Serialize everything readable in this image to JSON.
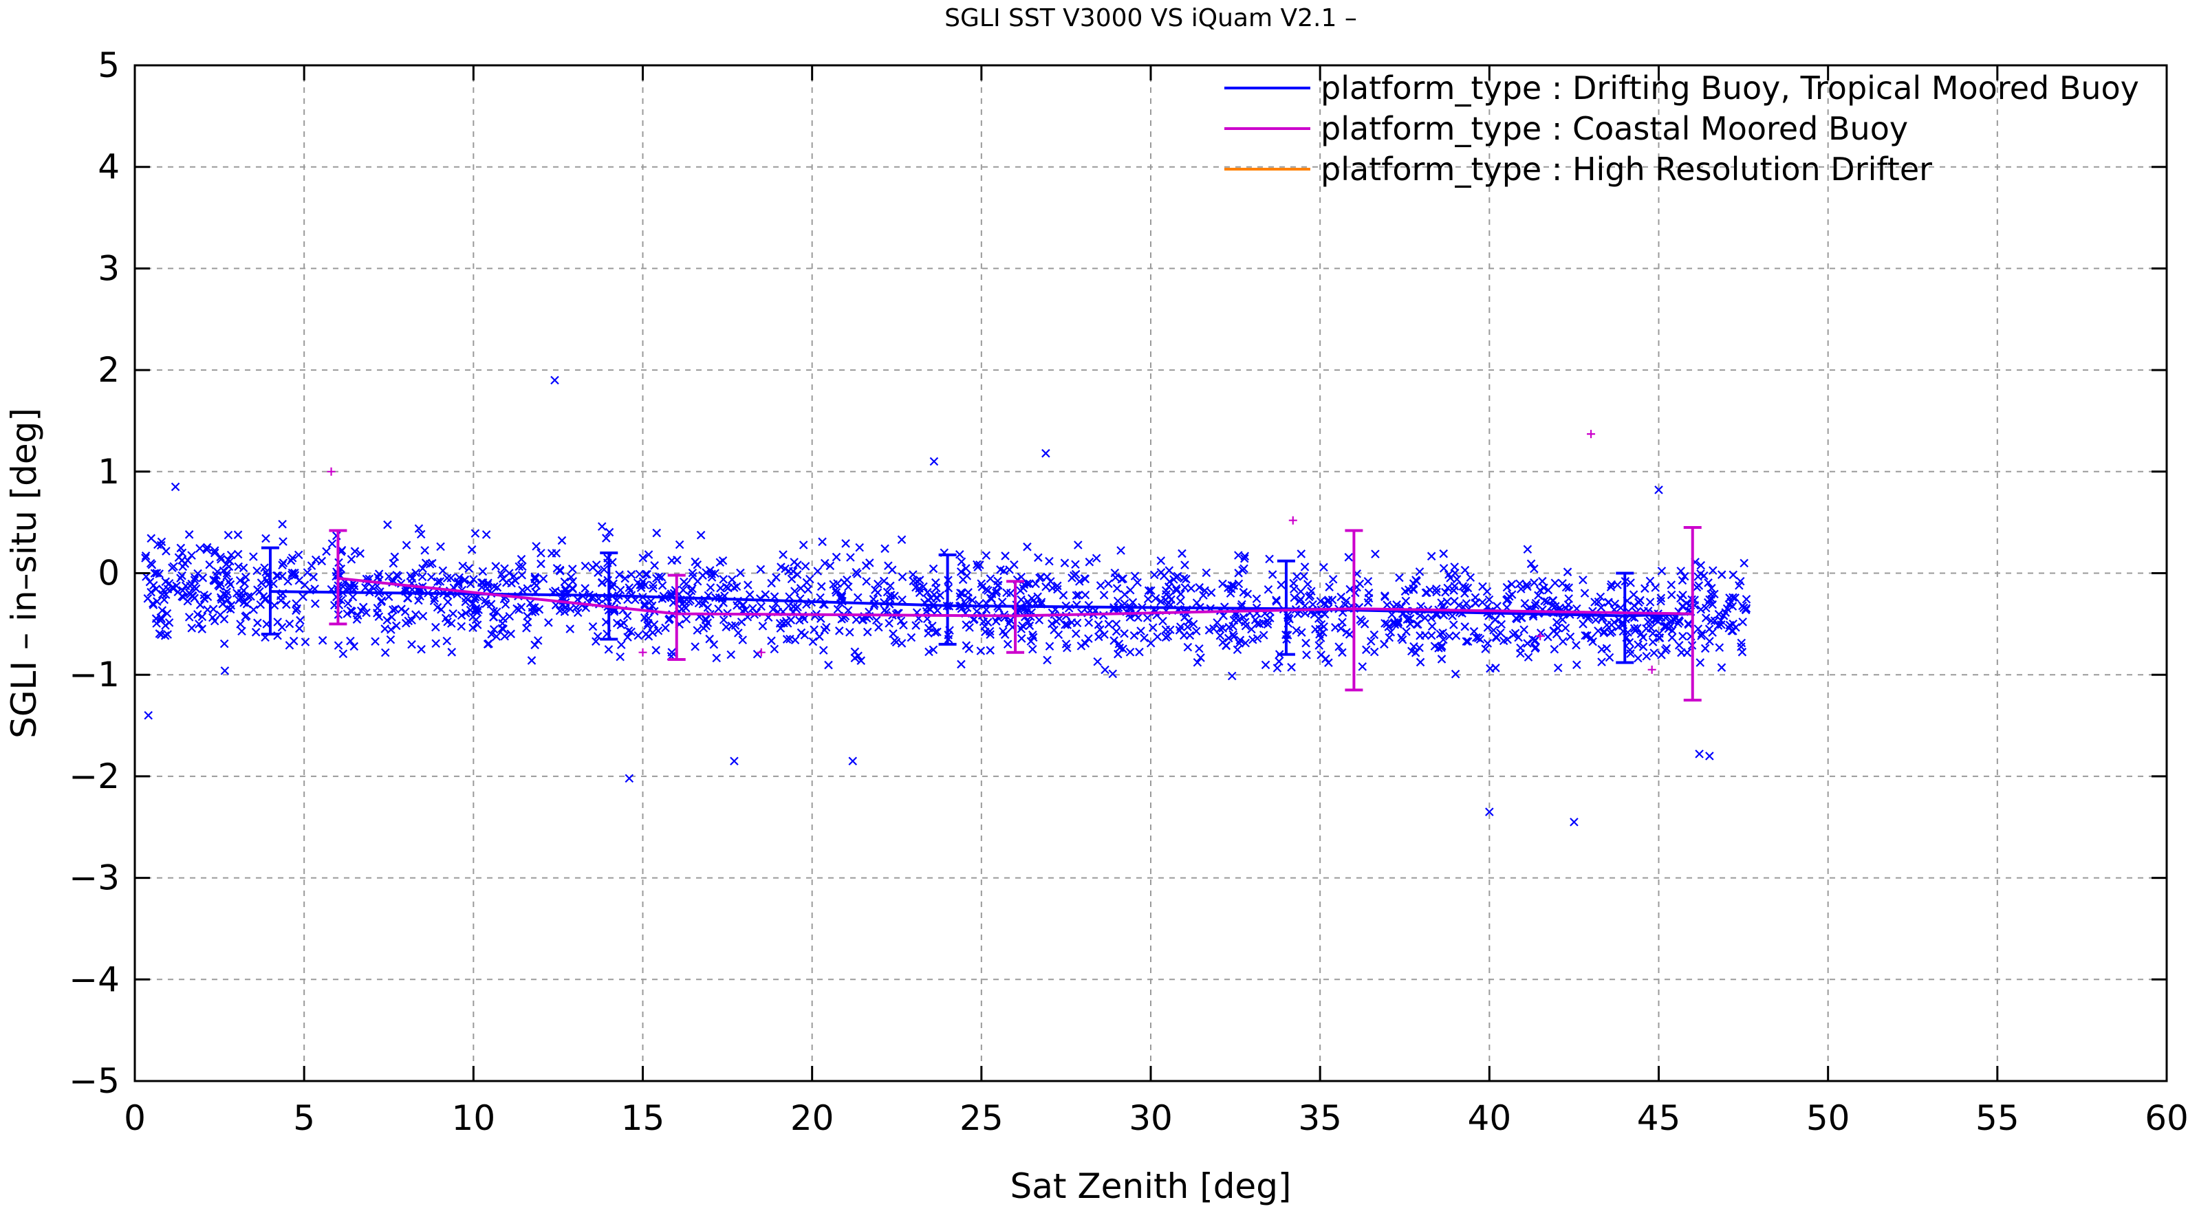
{
  "chart_data": {
    "type": "scatter",
    "title": "SGLI SST V3000 VS iQuam V2.1  –",
    "xlabel": "Sat Zenith [deg]",
    "ylabel": "SGLI – in–situ [deg]",
    "xlim": [
      0,
      60
    ],
    "ylim": [
      -5,
      5
    ],
    "xticks": [
      0,
      5,
      10,
      15,
      20,
      25,
      30,
      35,
      40,
      45,
      50,
      55,
      60
    ],
    "yticks": [
      -5,
      -4,
      -3,
      -2,
      -1,
      0,
      1,
      2,
      3,
      4,
      5
    ],
    "xtick_labels": [
      "0",
      "5",
      "10",
      "15",
      "20",
      "25",
      "30",
      "35",
      "40",
      "45",
      "50",
      "55",
      "60"
    ],
    "ytick_labels": [
      "−5",
      "−4",
      "−3",
      "−2",
      "−1",
      "0",
      "1",
      "2",
      "3",
      "4",
      "5"
    ],
    "grid": true,
    "legend_position": "top-right",
    "series": [
      {
        "name": "platform_type : Drifting Buoy, Tropical Moored Buoy",
        "color": "#0000ff",
        "marker": "x",
        "mean_line": {
          "x": [
            4,
            14,
            24,
            34,
            44,
            46
          ],
          "y": [
            -0.18,
            -0.22,
            -0.32,
            -0.35,
            -0.42,
            -0.4
          ]
        },
        "error_bars": [
          {
            "x": 4,
            "y": -0.18,
            "low": -0.6,
            "high": 0.25
          },
          {
            "x": 14,
            "y": -0.22,
            "low": -0.65,
            "high": 0.2
          },
          {
            "x": 24,
            "y": -0.32,
            "low": -0.7,
            "high": 0.18
          },
          {
            "x": 34,
            "y": -0.35,
            "low": -0.8,
            "high": 0.12
          },
          {
            "x": 44,
            "y": -0.42,
            "low": -0.88,
            "high": 0.0
          }
        ],
        "outliers": [
          {
            "x": 12.4,
            "y": 1.9
          },
          {
            "x": 23.6,
            "y": 1.1
          },
          {
            "x": 26.9,
            "y": 1.18
          },
          {
            "x": 14.6,
            "y": -2.02
          },
          {
            "x": 17.7,
            "y": -1.85
          },
          {
            "x": 21.2,
            "y": -1.85
          },
          {
            "x": 40.0,
            "y": -2.35
          },
          {
            "x": 42.5,
            "y": -2.45
          },
          {
            "x": 46.2,
            "y": -1.78
          },
          {
            "x": 46.5,
            "y": -1.8
          },
          {
            "x": 1.2,
            "y": 0.85
          },
          {
            "x": 0.4,
            "y": -1.4
          },
          {
            "x": 45.0,
            "y": 0.82
          }
        ]
      },
      {
        "name": "platform_type : Coastal Moored Buoy",
        "color": "#cc00cc",
        "marker": "+",
        "mean_line": {
          "x": [
            6,
            16,
            26,
            36,
            46
          ],
          "y": [
            -0.05,
            -0.4,
            -0.42,
            -0.35,
            -0.4
          ]
        },
        "error_bars": [
          {
            "x": 6,
            "y": -0.05,
            "low": -0.5,
            "high": 0.42
          },
          {
            "x": 16,
            "y": -0.4,
            "low": -0.85,
            "high": -0.02
          },
          {
            "x": 26,
            "y": -0.42,
            "low": -0.78,
            "high": -0.08
          },
          {
            "x": 36,
            "y": -0.35,
            "low": -1.15,
            "high": 0.42
          },
          {
            "x": 46,
            "y": -0.4,
            "low": -1.25,
            "high": 0.45
          }
        ],
        "points": [
          {
            "x": 5.8,
            "y": 1.0
          },
          {
            "x": 43.0,
            "y": 1.37
          },
          {
            "x": 34.2,
            "y": 0.52
          },
          {
            "x": 15.0,
            "y": -0.78
          },
          {
            "x": 18.5,
            "y": -0.78
          },
          {
            "x": 41.5,
            "y": -0.62
          },
          {
            "x": 44.8,
            "y": -0.95
          }
        ]
      },
      {
        "name": "platform_type : High Resolution Drifter",
        "color": "#ff8000",
        "marker": "x",
        "points": []
      }
    ]
  }
}
